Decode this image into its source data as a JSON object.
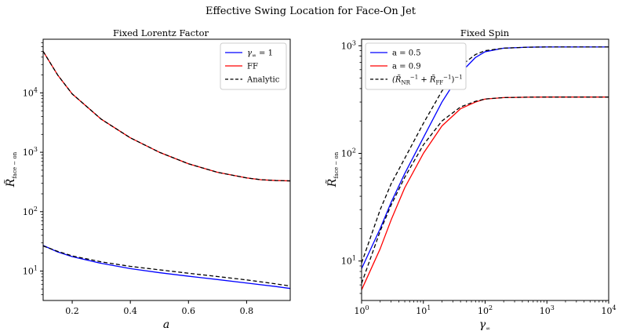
{
  "figure": {
    "title": "Effective Swing Location for Face-On Jet"
  },
  "chart_data": [
    {
      "type": "line",
      "title": "Fixed Lorentz Factor",
      "xlabel": "a",
      "ylabel": "R̃",
      "ylabel_sub": "face − on",
      "xscale": "linear",
      "yscale": "log",
      "xlim": [
        0.1,
        0.95
      ],
      "ylim": [
        3.2,
        80000
      ],
      "xticks": [
        0.2,
        0.4,
        0.6,
        0.8
      ],
      "xtick_labels": [
        "0.2",
        "0.4",
        "0.6",
        "0.8"
      ],
      "yticks": [
        10,
        100,
        1000,
        10000
      ],
      "ytick_labels": [
        {
          "base": "10",
          "exp": "1"
        },
        {
          "base": "10",
          "exp": "2"
        },
        {
          "base": "10",
          "exp": "3"
        },
        {
          "base": "10",
          "exp": "4"
        }
      ],
      "legend": {
        "placement": "top-right",
        "entries": [
          {
            "label": "γ",
            "sub": "∞",
            "suffix": " = 1",
            "color": "#0000ff",
            "dash": "solid"
          },
          {
            "label": "FF",
            "color": "#ff0000",
            "dash": "solid"
          },
          {
            "label": "Analytic",
            "color": "#000000",
            "dash": "dashed"
          }
        ]
      },
      "series": [
        {
          "color": "#0000ff",
          "dash": "solid",
          "x": [
            0.1,
            0.15,
            0.2,
            0.3,
            0.4,
            0.5,
            0.6,
            0.7,
            0.8,
            0.9,
            0.95
          ],
          "y": [
            27.0,
            21.0,
            17.5,
            13.5,
            11.0,
            9.4,
            8.2,
            7.2,
            6.3,
            5.5,
            5.1
          ]
        },
        {
          "color": "#ff0000",
          "dash": "solid",
          "x": [
            0.1,
            0.15,
            0.2,
            0.3,
            0.4,
            0.5,
            0.6,
            0.7,
            0.8,
            0.85,
            0.9,
            0.95
          ],
          "y": [
            50000,
            20000,
            9600,
            3600,
            1750,
            1000,
            640,
            460,
            370,
            345,
            335,
            330
          ]
        },
        {
          "color": "#000000",
          "dash": "dashed",
          "x": [
            0.1,
            0.15,
            0.2,
            0.3,
            0.4,
            0.5,
            0.6,
            0.7,
            0.8,
            0.85,
            0.9,
            0.95
          ],
          "y": [
            50000,
            20000,
            9600,
            3600,
            1750,
            1000,
            640,
            460,
            370,
            345,
            335,
            330
          ]
        },
        {
          "color": "#000000",
          "dash": "dashed",
          "x": [
            0.1,
            0.15,
            0.2,
            0.3,
            0.4,
            0.5,
            0.6,
            0.7,
            0.8,
            0.9,
            0.95
          ],
          "y": [
            26.5,
            21.5,
            18.0,
            14.3,
            12.0,
            10.5,
            9.2,
            8.1,
            7.1,
            6.1,
            5.6
          ]
        }
      ]
    },
    {
      "type": "line",
      "title": "Fixed Spin",
      "xlabel": "γ",
      "xlabel_sub": "∞",
      "ylabel": "R̃",
      "ylabel_sub": "face − on",
      "xscale": "log",
      "yscale": "log",
      "xlim": [
        1,
        10000
      ],
      "ylim": [
        4.3,
        1150
      ],
      "xticks": [
        1,
        10,
        100,
        1000,
        10000
      ],
      "xtick_labels": [
        {
          "base": "10",
          "exp": "0"
        },
        {
          "base": "10",
          "exp": "1"
        },
        {
          "base": "10",
          "exp": "2"
        },
        {
          "base": "10",
          "exp": "3"
        },
        {
          "base": "10",
          "exp": "4"
        }
      ],
      "yticks": [
        10,
        100,
        1000
      ],
      "ytick_labels": [
        {
          "base": "10",
          "exp": "1"
        },
        {
          "base": "10",
          "exp": "2"
        },
        {
          "base": "10",
          "exp": "3"
        }
      ],
      "legend": {
        "placement": "top-left",
        "entries": [
          {
            "label": "a = 0.5",
            "color": "#0000ff",
            "dash": "solid"
          },
          {
            "label": "a = 0.9",
            "color": "#ff0000",
            "dash": "solid"
          },
          {
            "label": "(R̃",
            "formula": "(R̃_NR^−1 + R̃_FF^−1)^−1",
            "color": "#000000",
            "dash": "dashed"
          }
        ]
      },
      "series": [
        {
          "color": "#0000ff",
          "dash": "solid",
          "x": [
            1,
            2,
            3,
            5,
            10,
            20,
            40,
            70,
            100,
            200,
            500,
            1000,
            10000
          ],
          "y": [
            8.5,
            20,
            35,
            65,
            140,
            300,
            560,
            780,
            880,
            950,
            970,
            975,
            975
          ]
        },
        {
          "color": "#ff0000",
          "dash": "solid",
          "x": [
            1,
            2,
            3,
            5,
            10,
            20,
            40,
            70,
            100,
            200,
            500,
            1000,
            10000
          ],
          "y": [
            5.4,
            13,
            24,
            48,
            100,
            180,
            260,
            300,
            320,
            330,
            333,
            334,
            334
          ]
        },
        {
          "color": "#000000",
          "dash": "dashed",
          "x": [
            1,
            2,
            3,
            5,
            10,
            20,
            40,
            70,
            100,
            200,
            500,
            1000,
            10000
          ],
          "y": [
            9.6,
            30,
            52,
            90,
            190,
            380,
            650,
            830,
            900,
            950,
            970,
            975,
            975
          ]
        },
        {
          "color": "#000000",
          "dash": "dashed",
          "x": [
            1,
            2,
            3,
            5,
            10,
            20,
            40,
            70,
            100,
            200,
            500,
            1000,
            10000
          ],
          "y": [
            6.2,
            19,
            33,
            60,
            120,
            200,
            270,
            305,
            320,
            330,
            333,
            334,
            334
          ]
        }
      ]
    }
  ]
}
